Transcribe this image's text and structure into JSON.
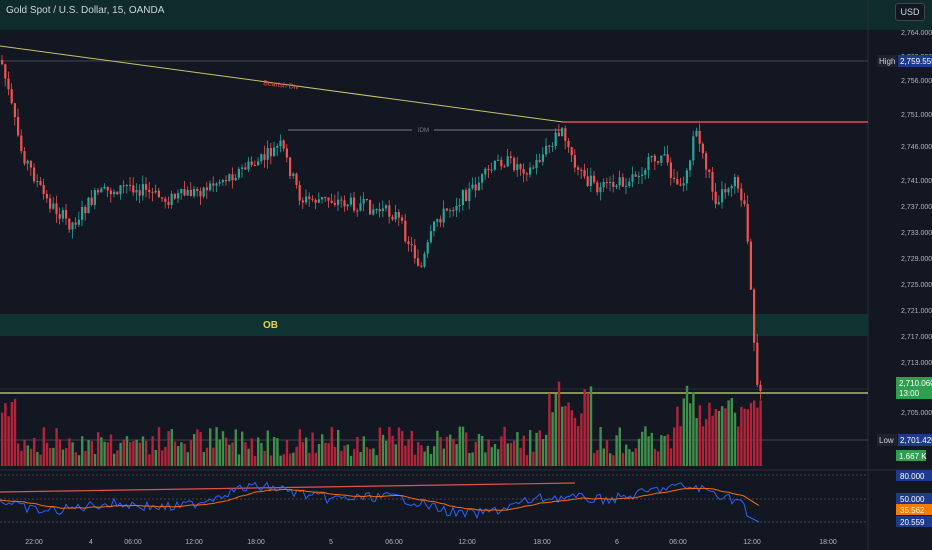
{
  "header": {
    "title": "Gold Spot / U.S. Dollar, 15, OANDA",
    "currency_button": "USD"
  },
  "colors": {
    "background": "#131722",
    "up": "#26a69a",
    "down": "#ef5350",
    "vol_up": "#3f8f4a",
    "vol_down": "#b2243a",
    "ob_zone": "#0f3330",
    "trendline": "#c7c36a",
    "resistance": "#e0524b",
    "rsi_line": "#2962ff",
    "rsi_ma": "#ff6d00"
  },
  "chart_data": {
    "type": "candlestick",
    "y_axis_ticks": [
      "2,764.000",
      "2,760.000",
      "2,756.000",
      "2,751.000",
      "2,746.000",
      "2,741.000",
      "2,737.000",
      "2,733.000",
      "2,729.000",
      "2,725.000",
      "2,721.000",
      "2,717.000",
      "2,713.000",
      "2,709.000",
      "2,705.000",
      "2,701.000"
    ],
    "x_axis_ticks": [
      "22:00",
      "4",
      "06:00",
      "12:00",
      "18:00",
      "5",
      "06:00",
      "12:00",
      "18:00",
      "6",
      "06:00",
      "12:00",
      "18:00"
    ],
    "high_label": "High",
    "high_value": "2,759.555",
    "low_label": "Low",
    "low_value": "2,701.425",
    "last_price": "2,710.060",
    "countdown": "13:00",
    "volume_label": "1.667 K",
    "annotations": {
      "bearish_div": "Bearish Div",
      "idm": "IDM",
      "ob": "OB"
    },
    "rsi": {
      "levels": [
        "80.000",
        "50.000",
        "20.559"
      ],
      "ma_value": "35.562"
    }
  }
}
